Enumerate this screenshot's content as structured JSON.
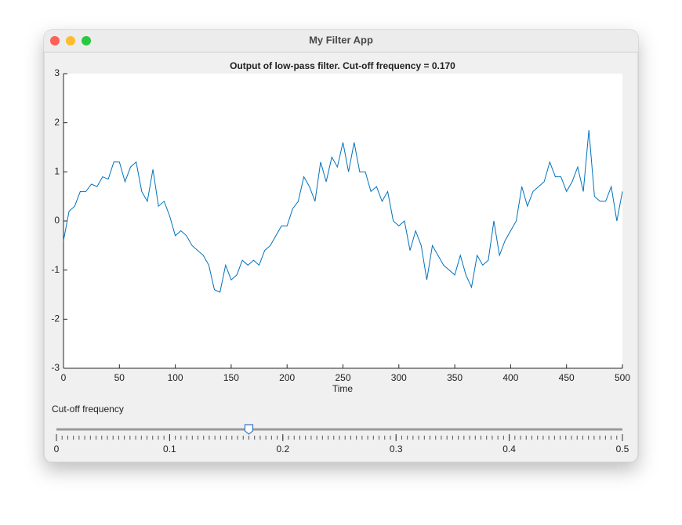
{
  "window": {
    "title": "My Filter App"
  },
  "chart_data": {
    "type": "line",
    "title": "Output of low-pass filter. Cut-off frequency = 0.170",
    "xlabel": "Time",
    "x": [
      0,
      5,
      10,
      15,
      20,
      25,
      30,
      35,
      40,
      45,
      50,
      55,
      60,
      65,
      70,
      75,
      80,
      85,
      90,
      95,
      100,
      105,
      110,
      115,
      120,
      125,
      130,
      135,
      140,
      145,
      150,
      155,
      160,
      165,
      170,
      175,
      180,
      185,
      190,
      195,
      200,
      205,
      210,
      215,
      220,
      225,
      230,
      235,
      240,
      245,
      250,
      255,
      260,
      265,
      270,
      275,
      280,
      285,
      290,
      295,
      300,
      305,
      310,
      315,
      320,
      325,
      330,
      335,
      340,
      345,
      350,
      355,
      360,
      365,
      370,
      375,
      380,
      385,
      390,
      395,
      400,
      405,
      410,
      415,
      420,
      425,
      430,
      435,
      440,
      445,
      450,
      455,
      460,
      465,
      470,
      475,
      480,
      485,
      490,
      495,
      500
    ],
    "series": [
      {
        "color": "#0072bd",
        "values": [
          -0.4,
          0.2,
          0.3,
          0.6,
          0.6,
          0.75,
          0.7,
          0.9,
          0.85,
          1.2,
          1.2,
          0.8,
          1.1,
          1.2,
          0.6,
          0.4,
          1.05,
          0.3,
          0.4,
          0.1,
          -0.3,
          -0.2,
          -0.3,
          -0.5,
          -0.6,
          -0.7,
          -0.9,
          -1.4,
          -1.45,
          -0.9,
          -1.2,
          -1.1,
          -0.8,
          -0.9,
          -0.8,
          -0.9,
          -0.6,
          -0.5,
          -0.3,
          -0.1,
          -0.1,
          0.25,
          0.4,
          0.9,
          0.7,
          0.4,
          1.2,
          0.8,
          1.3,
          1.1,
          1.6,
          1.0,
          1.6,
          1.0,
          1.0,
          0.6,
          0.7,
          0.4,
          0.6,
          0.0,
          -0.1,
          0.0,
          -0.6,
          -0.2,
          -0.5,
          -1.2,
          -0.5,
          -0.7,
          -0.9,
          -1.0,
          -1.1,
          -0.7,
          -1.1,
          -1.35,
          -0.7,
          -0.9,
          -0.8,
          0.0,
          -0.7,
          -0.4,
          -0.2,
          0.0,
          0.7,
          0.3,
          0.6,
          0.7,
          0.8,
          1.2,
          0.9,
          0.9,
          0.6,
          0.8,
          1.1,
          0.6,
          1.85,
          0.5,
          0.4,
          0.4,
          0.7,
          0.0,
          0.6
        ]
      }
    ],
    "xlim": [
      0,
      500
    ],
    "xticks": [
      0,
      50,
      100,
      150,
      200,
      250,
      300,
      350,
      400,
      450,
      500
    ],
    "ylim": [
      -3,
      3
    ],
    "yticks": [
      -3,
      -2,
      -1,
      0,
      1,
      2,
      3
    ]
  },
  "slider": {
    "label": "Cut-off frequency",
    "value": 0.17,
    "limits": [
      0,
      0.5
    ],
    "ticks": [
      0,
      0.1,
      0.2,
      0.3,
      0.4,
      0.5
    ],
    "minor_tick_step": 0.005
  }
}
